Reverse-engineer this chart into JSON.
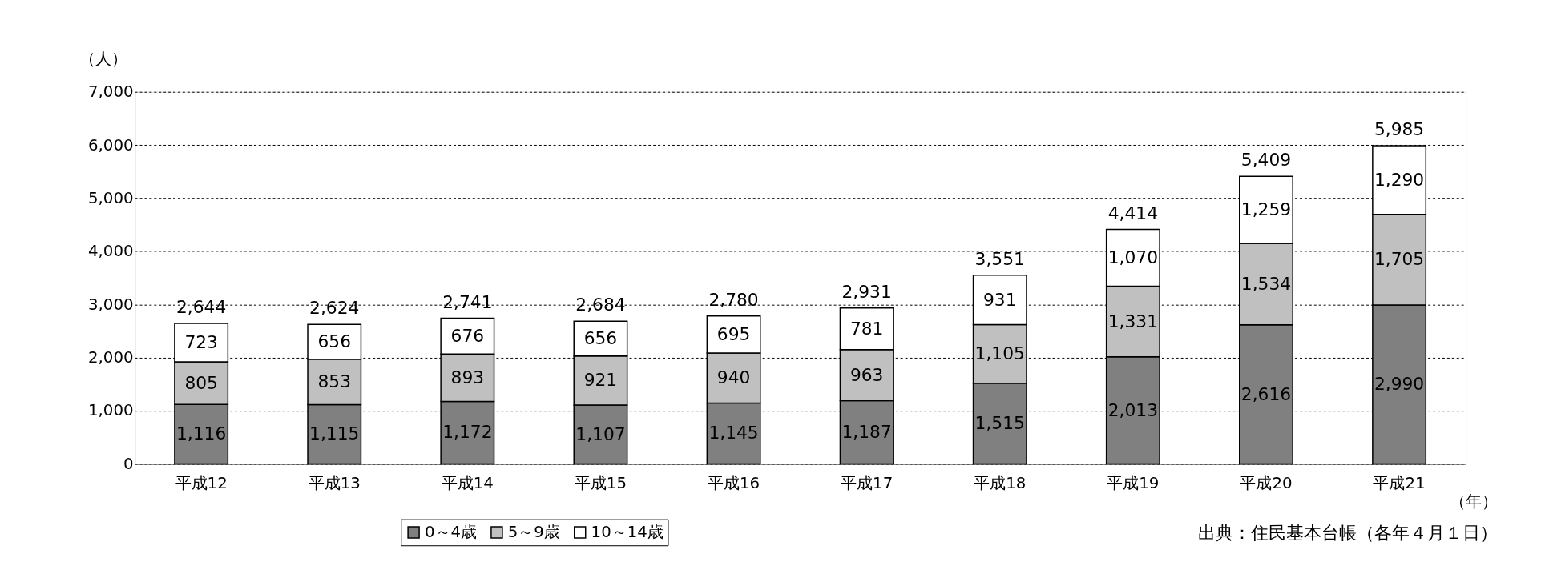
{
  "chart_data": {
    "type": "bar",
    "stacked": true,
    "ylabel": "（人）",
    "xlabel": "（年）",
    "categories": [
      "平成12",
      "平成13",
      "平成14",
      "平成15",
      "平成16",
      "平成17",
      "平成18",
      "平成19",
      "平成20",
      "平成21"
    ],
    "series": [
      {
        "name": "0～4歳",
        "color": "#808080",
        "values": [
          1116,
          1115,
          1172,
          1107,
          1145,
          1187,
          1515,
          2013,
          2616,
          2990
        ],
        "value_labels": [
          "1,116",
          "1,115",
          "1,172",
          "1,107",
          "1,145",
          "1,187",
          "1,515",
          "2,013",
          "2,616",
          "2,990"
        ]
      },
      {
        "name": "5～9歳",
        "color": "#c0c0c0",
        "values": [
          805,
          853,
          893,
          921,
          940,
          963,
          1105,
          1331,
          1534,
          1705
        ],
        "value_labels": [
          "805",
          "853",
          "893",
          "921",
          "940",
          "963",
          "1,105",
          "1,331",
          "1,534",
          "1,705"
        ]
      },
      {
        "name": "10～14歳",
        "color": "#ffffff",
        "values": [
          723,
          656,
          676,
          656,
          695,
          781,
          931,
          1070,
          1259,
          1290
        ],
        "value_labels": [
          "723",
          "656",
          "676",
          "656",
          "695",
          "781",
          "931",
          "1,070",
          "1,259",
          "1,290"
        ]
      }
    ],
    "totals": [
      "2,644",
      "2,624",
      "2,741",
      "2,684",
      "2,780",
      "2,931",
      "3,551",
      "4,414",
      "5,409",
      "5,985"
    ],
    "ylim": [
      0,
      7000
    ],
    "yticks": [
      0,
      {
        "value": 1000,
        "label": "1,000"
      },
      {
        "value": 2000,
        "label": "2,000"
      },
      {
        "value": 3000,
        "label": "3,000"
      },
      {
        "value": 4000,
        "label": "4,000"
      },
      {
        "value": 5000,
        "label": "5,000"
      },
      {
        "value": 6000,
        "label": "6,000"
      },
      {
        "value": 7000,
        "label": "7,000"
      }
    ],
    "grid": "y",
    "legend": "bottom",
    "annotations": [
      "出典：住民基本台帳（各年４月１日）"
    ]
  }
}
